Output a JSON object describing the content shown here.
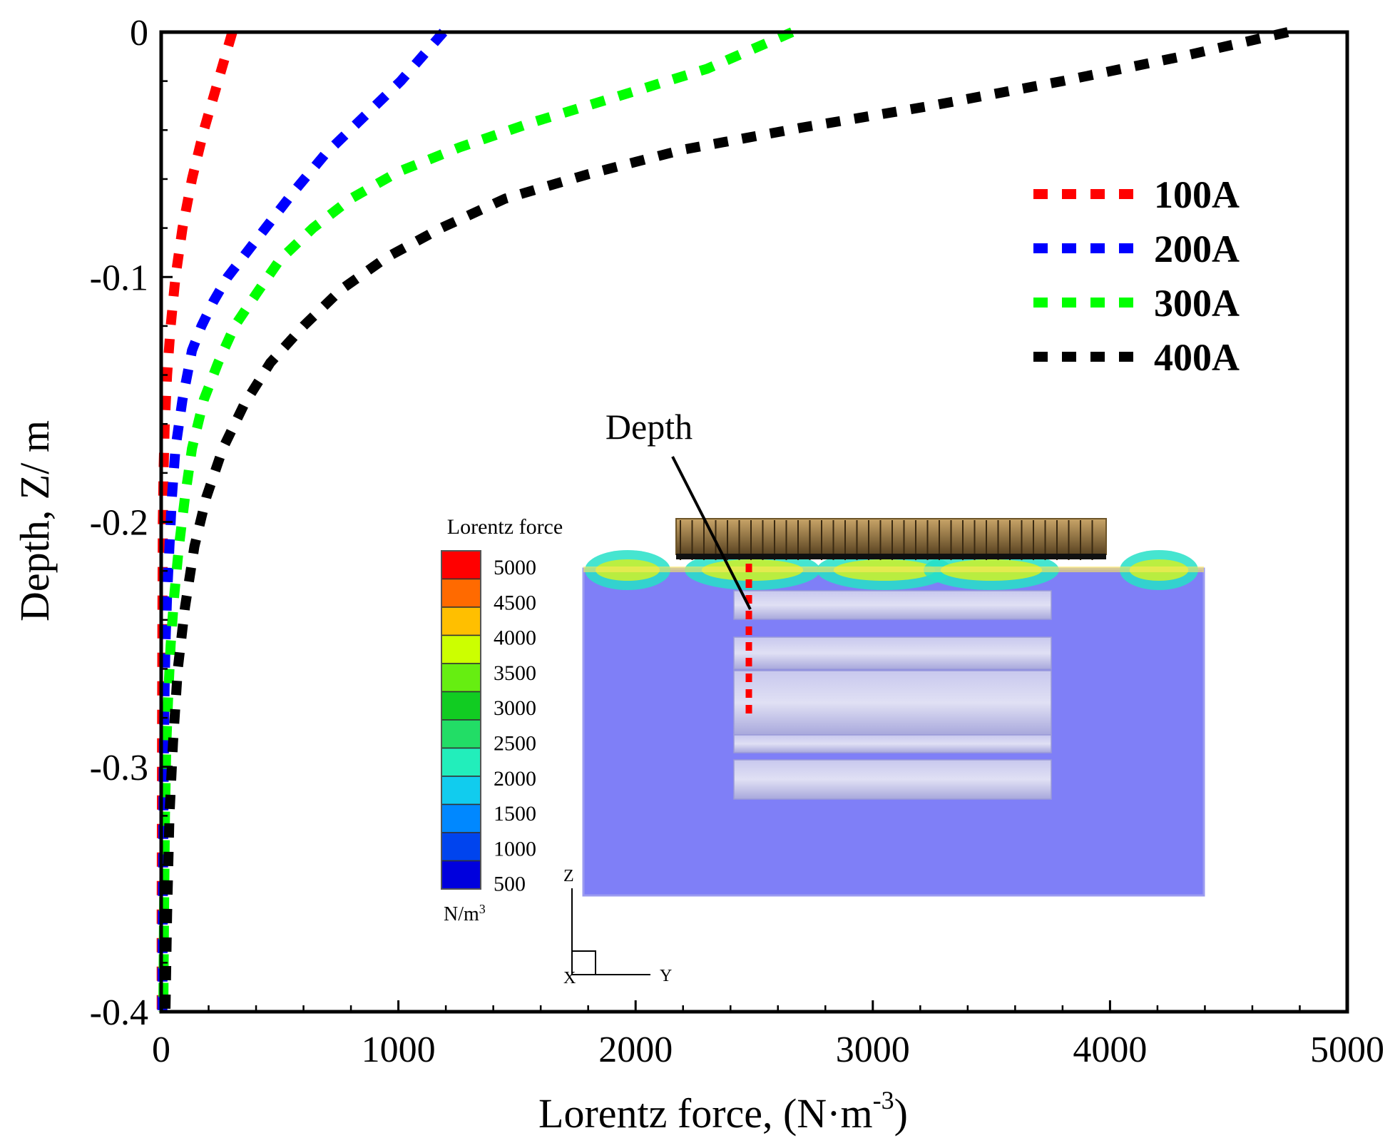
{
  "chart_data": {
    "type": "line",
    "title": "",
    "xlabel": "Lorentz force, (N·m",
    "xlabel_sup": "-3",
    "xlabel_tail": ")",
    "ylabel": "Depth, Z/ m",
    "xlim": [
      0,
      5000
    ],
    "ylim": [
      -0.4,
      0
    ],
    "x_ticks": [
      0,
      1000,
      2000,
      3000,
      4000,
      5000
    ],
    "x_tick_labels": [
      "0",
      "1000",
      "2000",
      "3000",
      "4000",
      "5000"
    ],
    "y_ticks": [
      0,
      -0.1,
      -0.2,
      -0.3,
      -0.4
    ],
    "y_tick_labels": [
      "0",
      "-0.1",
      "-0.2",
      "-0.3",
      "-0.4"
    ],
    "grid": false,
    "legend_position": "top-right",
    "series": [
      {
        "name": "100A",
        "color": "#ff0000",
        "x": [
          300,
          240,
          180,
          130,
          90,
          60,
          40,
          25,
          15,
          10,
          7,
          5,
          4,
          3,
          2,
          2
        ],
        "y": [
          0,
          -0.02,
          -0.04,
          -0.06,
          -0.08,
          -0.1,
          -0.12,
          -0.14,
          -0.16,
          -0.18,
          -0.2,
          -0.24,
          -0.28,
          -0.32,
          -0.36,
          -0.4
        ]
      },
      {
        "name": "200A",
        "color": "#0000ff",
        "x": [
          1190,
          1010,
          850,
          690,
          560,
          440,
          360,
          280,
          220,
          170,
          130,
          90,
          60,
          45,
          35,
          25,
          18,
          14,
          12,
          10,
          8,
          6,
          5
        ],
        "y": [
          0,
          -0.02,
          -0.035,
          -0.05,
          -0.065,
          -0.08,
          -0.09,
          -0.1,
          -0.11,
          -0.12,
          -0.13,
          -0.15,
          -0.17,
          -0.19,
          -0.21,
          -0.23,
          -0.25,
          -0.27,
          -0.29,
          -0.31,
          -0.34,
          -0.37,
          -0.4
        ]
      },
      {
        "name": "300A",
        "color": "#00ff00",
        "x": [
          2660,
          2300,
          1900,
          1560,
          1260,
          1000,
          800,
          640,
          500,
          400,
          310,
          240,
          180,
          130,
          100,
          75,
          55,
          40,
          30,
          22,
          16,
          12,
          9
        ],
        "y": [
          0,
          -0.015,
          -0.027,
          -0.037,
          -0.047,
          -0.057,
          -0.068,
          -0.08,
          -0.093,
          -0.107,
          -0.12,
          -0.135,
          -0.15,
          -0.17,
          -0.19,
          -0.21,
          -0.23,
          -0.25,
          -0.27,
          -0.29,
          -0.32,
          -0.36,
          -0.4
        ]
      },
      {
        "name": "400A",
        "color": "#000000",
        "x": [
          4750,
          4300,
          3800,
          3250,
          2700,
          2200,
          1800,
          1450,
          1180,
          950,
          760,
          600,
          460,
          350,
          260,
          190,
          140,
          100,
          70,
          50,
          35,
          25,
          18
        ],
        "y": [
          0,
          -0.01,
          -0.02,
          -0.03,
          -0.039,
          -0.048,
          -0.058,
          -0.068,
          -0.08,
          -0.092,
          -0.105,
          -0.12,
          -0.135,
          -0.152,
          -0.17,
          -0.19,
          -0.21,
          -0.235,
          -0.26,
          -0.29,
          -0.32,
          -0.36,
          -0.4
        ]
      }
    ],
    "annotations": [
      {
        "text": "Depth"
      }
    ],
    "inset": {
      "colorbar_title": "Lorentz force",
      "colorbar_labels": [
        "5000",
        "4500",
        "4000",
        "3500",
        "3000",
        "2500",
        "2000",
        "1500",
        "1000",
        "500"
      ],
      "colorbar_colors": [
        "#ff0000",
        "#ff6a00",
        "#ffbf00",
        "#ccff00",
        "#66ee11",
        "#11cc22",
        "#22dd66",
        "#22eebb",
        "#11ccee",
        "#0088ff",
        "#0044ee",
        "#0000dd"
      ],
      "colorbar_unit": "N/m",
      "colorbar_unit_sup": "3",
      "axis_z": "Z",
      "axis_y": "Y",
      "axis_x": "X",
      "domain_color": "#7f7ff7",
      "coil_color": "#8b6a3c"
    }
  }
}
